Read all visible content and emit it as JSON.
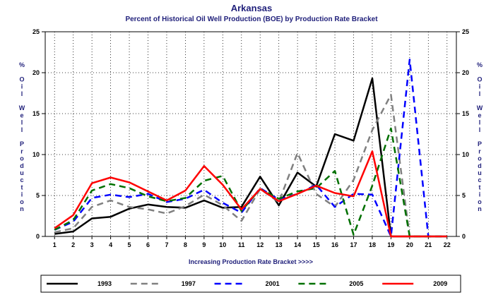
{
  "chart_data": {
    "type": "line",
    "title": "Arkansas",
    "subtitle": "Percent of Historical Oil Well Production (BOE) by Production Rate Bracket",
    "xlabel": "Increasing Production Rate Bracket >>>>",
    "ylabel": "% Oil Well Production",
    "ylim": [
      0,
      25
    ],
    "yticks": [
      "0",
      "5",
      "10",
      "15",
      "20",
      "25"
    ],
    "x": [
      1,
      2,
      3,
      4,
      5,
      6,
      7,
      8,
      9,
      10,
      11,
      12,
      13,
      14,
      15,
      16,
      17,
      18,
      19,
      20,
      21,
      22
    ],
    "grid": true,
    "legend": "bottom",
    "series": [
      {
        "name": "1993",
        "color": "#000000",
        "dash": "solid",
        "values": [
          0.3,
          0.6,
          2.2,
          2.4,
          3.4,
          3.9,
          3.6,
          3.5,
          4.4,
          3.5,
          3.6,
          7.3,
          3.8,
          7.8,
          6.1,
          12.5,
          11.7,
          19.3,
          0,
          0,
          0,
          0
        ]
      },
      {
        "name": "1997",
        "color": "#808080",
        "dash": "dash",
        "values": [
          0.5,
          1.0,
          3.6,
          4.4,
          3.6,
          3.3,
          2.8,
          3.7,
          5.1,
          3.8,
          1.9,
          5.8,
          4.2,
          10.2,
          5.2,
          3.6,
          6.9,
          13.0,
          17.3,
          0,
          0,
          0
        ]
      },
      {
        "name": "2001",
        "color": "#0000ff",
        "dash": "dash",
        "values": [
          0.8,
          1.8,
          4.7,
          5.1,
          4.8,
          5.2,
          4.2,
          4.6,
          5.7,
          4.1,
          2.9,
          5.9,
          4.5,
          5.2,
          6.3,
          3.6,
          5.2,
          5.1,
          0,
          21.6,
          0,
          0
        ]
      },
      {
        "name": "2005",
        "color": "#007000",
        "dash": "dash",
        "values": [
          0.8,
          2.0,
          5.6,
          6.4,
          5.9,
          4.9,
          4.3,
          4.7,
          6.8,
          7.4,
          3.1,
          5.8,
          4.6,
          5.5,
          5.9,
          8.0,
          0.2,
          6.2,
          13.2,
          0,
          0,
          0
        ]
      },
      {
        "name": "2009",
        "color": "#ff0000",
        "dash": "solid",
        "values": [
          1.0,
          2.6,
          6.5,
          7.2,
          6.6,
          5.5,
          4.4,
          5.6,
          8.6,
          6.3,
          3.3,
          5.8,
          4.3,
          5.2,
          6.2,
          5.3,
          4.9,
          10.4,
          0,
          0,
          0,
          0
        ]
      }
    ]
  }
}
